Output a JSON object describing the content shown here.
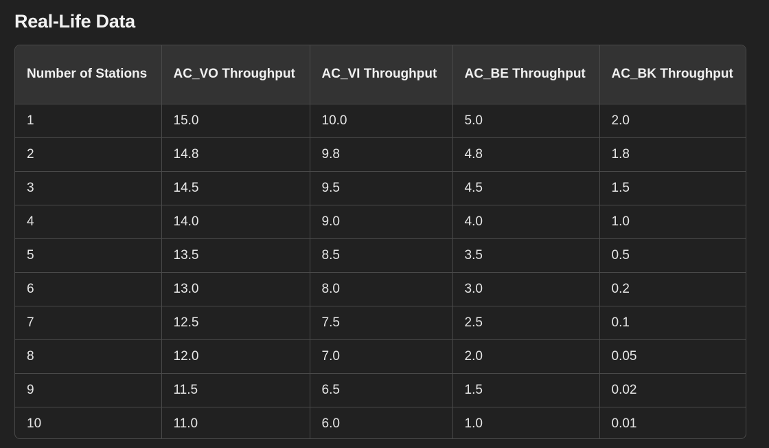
{
  "heading": "Real-Life Data",
  "table": {
    "headers": [
      "Number of Stations",
      "AC_VO Throughput",
      "AC_VI Throughput",
      "AC_BE Throughput",
      "AC_BK Throughput"
    ],
    "rows": [
      [
        "1",
        "15.0",
        "10.0",
        "5.0",
        "2.0"
      ],
      [
        "2",
        "14.8",
        "9.8",
        "4.8",
        "1.8"
      ],
      [
        "3",
        "14.5",
        "9.5",
        "4.5",
        "1.5"
      ],
      [
        "4",
        "14.0",
        "9.0",
        "4.0",
        "1.0"
      ],
      [
        "5",
        "13.5",
        "8.5",
        "3.5",
        "0.5"
      ],
      [
        "6",
        "13.0",
        "8.0",
        "3.0",
        "0.2"
      ],
      [
        "7",
        "12.5",
        "7.5",
        "2.5",
        "0.1"
      ],
      [
        "8",
        "12.0",
        "7.0",
        "2.0",
        "0.05"
      ],
      [
        "9",
        "11.5",
        "6.5",
        "1.5",
        "0.02"
      ],
      [
        "10",
        "11.0",
        "6.0",
        "1.0",
        "0.01"
      ]
    ]
  }
}
